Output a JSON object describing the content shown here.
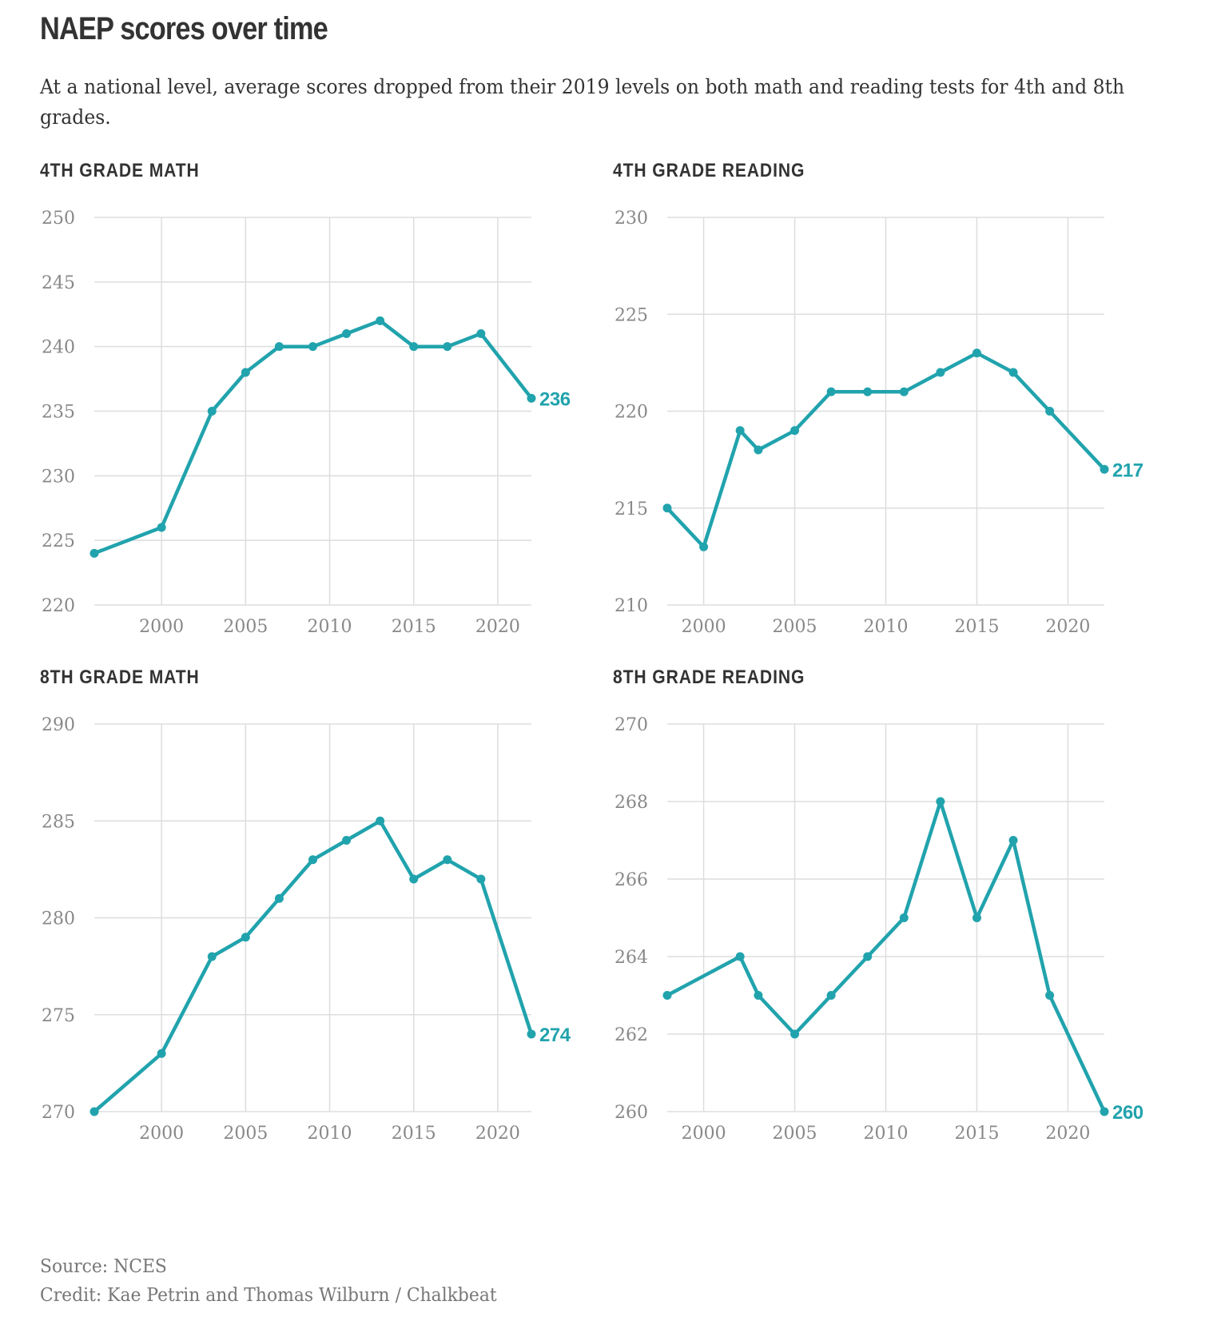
{
  "header": {
    "title": "NAEP scores over time",
    "subtitle": "At a national level, average scores dropped from their 2019 levels on both math and reading tests for 4th and 8th grades."
  },
  "footer": {
    "source": "Source: NCES",
    "credit": "Credit: Kae Petrin and Thomas Wilburn / Chalkbeat"
  },
  "colors": {
    "line": "#21a3ad",
    "grid": "#dddddd",
    "tick_text": "#888888",
    "title_text": "#333333"
  },
  "chart_data": [
    {
      "id": "g4-math",
      "type": "line",
      "title": "4TH GRADE MATH",
      "x": [
        1996,
        2000,
        2003,
        2005,
        2007,
        2009,
        2011,
        2013,
        2015,
        2017,
        2019,
        2022
      ],
      "series": [
        {
          "values": [
            224,
            226,
            235,
            238,
            240,
            240,
            241,
            242,
            240,
            240,
            241,
            236
          ]
        }
      ],
      "end_label": "236",
      "xlim": [
        1996,
        2022
      ],
      "ylim": [
        220,
        250
      ],
      "xticks": [
        2000,
        2005,
        2010,
        2015,
        2020
      ],
      "yticks": [
        220,
        225,
        230,
        235,
        240,
        245,
        250
      ],
      "grid": true
    },
    {
      "id": "g4-reading",
      "type": "line",
      "title": "4TH GRADE READING",
      "x": [
        1998,
        2000,
        2002,
        2003,
        2005,
        2007,
        2009,
        2011,
        2013,
        2015,
        2017,
        2019,
        2022
      ],
      "series": [
        {
          "values": [
            215,
            213,
            219,
            218,
            219,
            221,
            221,
            221,
            222,
            223,
            222,
            220,
            217
          ]
        }
      ],
      "end_label": "217",
      "xlim": [
        1998,
        2022
      ],
      "ylim": [
        210,
        230
      ],
      "xticks": [
        2000,
        2005,
        2010,
        2015,
        2020
      ],
      "yticks": [
        210,
        215,
        220,
        225,
        230
      ],
      "grid": true
    },
    {
      "id": "g8-math",
      "type": "line",
      "title": "8TH GRADE MATH",
      "x": [
        1996,
        2000,
        2003,
        2005,
        2007,
        2009,
        2011,
        2013,
        2015,
        2017,
        2019,
        2022
      ],
      "series": [
        {
          "values": [
            270,
            273,
            278,
            279,
            281,
            283,
            284,
            285,
            282,
            283,
            282,
            274
          ]
        }
      ],
      "end_label": "274",
      "xlim": [
        1996,
        2022
      ],
      "ylim": [
        270,
        290
      ],
      "xticks": [
        2000,
        2005,
        2010,
        2015,
        2020
      ],
      "yticks": [
        270,
        275,
        280,
        285,
        290
      ],
      "grid": true
    },
    {
      "id": "g8-reading",
      "type": "line",
      "title": "8TH GRADE READING",
      "x": [
        1998,
        2002,
        2003,
        2005,
        2007,
        2009,
        2011,
        2013,
        2015,
        2017,
        2019,
        2022
      ],
      "series": [
        {
          "values": [
            263,
            264,
            263,
            262,
            263,
            264,
            265,
            268,
            265,
            267,
            263,
            260
          ]
        }
      ],
      "end_label": "260",
      "xlim": [
        1998,
        2022
      ],
      "ylim": [
        260,
        270
      ],
      "xticks": [
        2000,
        2005,
        2010,
        2015,
        2020
      ],
      "yticks": [
        260,
        262,
        264,
        266,
        268,
        270
      ],
      "grid": true
    }
  ]
}
